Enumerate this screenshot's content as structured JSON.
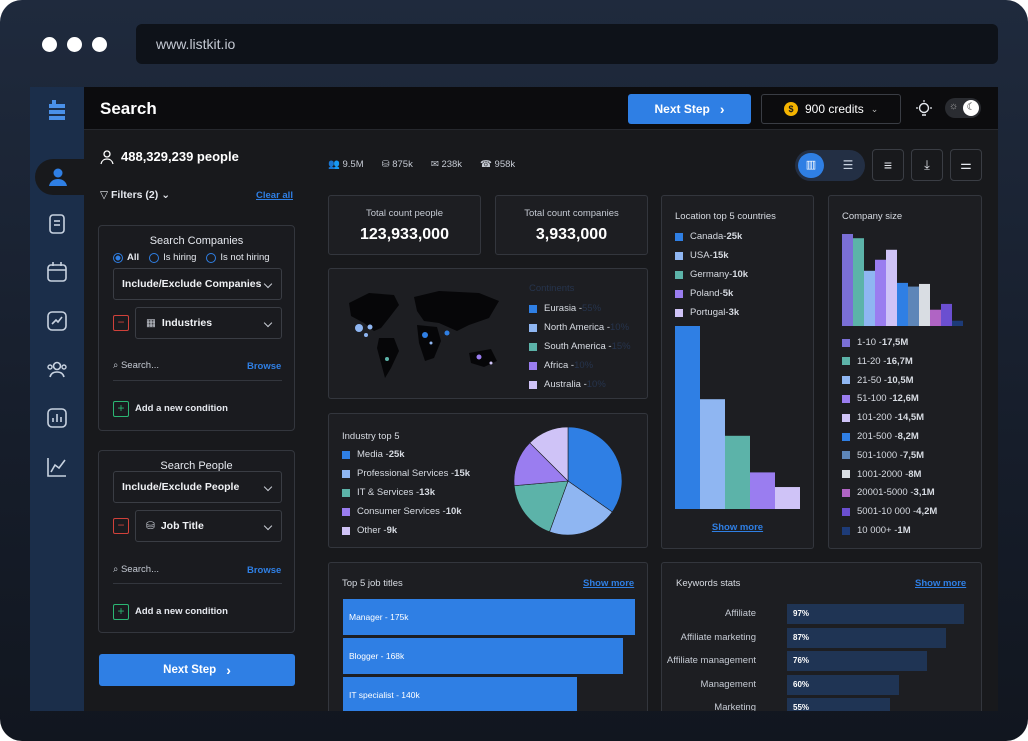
{
  "browser": {
    "url": "www.listkit.io"
  },
  "header": {
    "title": "Search",
    "next_step": "Next Step",
    "credits": "900 credits"
  },
  "people": {
    "count": "488,329,239 people",
    "stats": [
      "9.5M",
      "875k",
      "238k",
      "958k"
    ]
  },
  "filters": {
    "label": "Filters (2)",
    "clear": "Clear all"
  },
  "companies": {
    "title": "Search Companies",
    "radios": [
      "All",
      "Is hiring",
      "Is not hiring"
    ],
    "include": "Include/Exclude Companies",
    "field": "Industries",
    "search_placeholder": "Search...",
    "browse": "Browse",
    "add": "Add a new condition"
  },
  "peoplefilter": {
    "title": "Search People",
    "include": "Include/Exclude People",
    "field": "Job Title",
    "search_placeholder": "Search...",
    "browse": "Browse",
    "add": "Add a new condition"
  },
  "next_step_bottom": "Next Step",
  "totals": {
    "people_label": "Total count people",
    "people_value": "123,933,000",
    "companies_label": "Total count companies",
    "companies_value": "3,933,000"
  },
  "continents": {
    "title": "Continents",
    "items": [
      {
        "name": "Eurasia",
        "pct": "55%",
        "color": "#2f7fe4"
      },
      {
        "name": "North America",
        "pct": "10%",
        "color": "#8fb6f2"
      },
      {
        "name": "South America",
        "pct": "15%",
        "color": "#5cb3a9"
      },
      {
        "name": "Africa",
        "pct": "10%",
        "color": "#9a7df0"
      },
      {
        "name": "Australia",
        "pct": "10%",
        "color": "#cfc3f7"
      }
    ]
  },
  "industry": {
    "title": "Industry top 5",
    "items": [
      {
        "name": "Media",
        "value": "25k",
        "v": 25,
        "color": "#2f7fe4"
      },
      {
        "name": "Professional Services",
        "value": "15k",
        "v": 15,
        "color": "#8fb6f2"
      },
      {
        "name": "IT & Services",
        "value": "13k",
        "v": 13,
        "color": "#5cb3a9"
      },
      {
        "name": "Consumer Services",
        "value": "10k",
        "v": 10,
        "color": "#9a7df0"
      },
      {
        "name": "Other",
        "value": "9k",
        "v": 9,
        "color": "#cfc3f7"
      }
    ]
  },
  "location": {
    "title": "Location top 5 countries",
    "show_more": "Show more",
    "items": [
      {
        "name": "Canada",
        "value": "25k",
        "v": 25,
        "color": "#2f7fe4"
      },
      {
        "name": "USA",
        "value": "15k",
        "v": 15,
        "color": "#8fb6f2"
      },
      {
        "name": "Germany",
        "value": "10k",
        "v": 10,
        "color": "#5cb3a9"
      },
      {
        "name": "Poland",
        "value": "5k",
        "v": 5,
        "color": "#9a7df0"
      },
      {
        "name": "Portugal",
        "value": "3k",
        "v": 3,
        "color": "#cfc3f7"
      }
    ]
  },
  "company_size": {
    "title": "Company size",
    "items": [
      {
        "name": "1-10",
        "value": "17,5M",
        "v": 17.5,
        "color": "#7a6fd6"
      },
      {
        "name": "11-20",
        "value": "16,7M",
        "v": 16.7,
        "color": "#5cb3a9"
      },
      {
        "name": "21-50",
        "value": "10,5M",
        "v": 10.5,
        "color": "#8fb6f2"
      },
      {
        "name": "51-100",
        "value": "12,6M",
        "v": 12.6,
        "color": "#9a7df0"
      },
      {
        "name": "101-200",
        "value": "14,5M",
        "v": 14.5,
        "color": "#cfc3f7"
      },
      {
        "name": "201-500",
        "value": "8,2M",
        "v": 8.2,
        "color": "#2f7fe4"
      },
      {
        "name": "501-1000",
        "value": "7,5M",
        "v": 7.5,
        "color": "#5e86b8"
      },
      {
        "name": "1001-2000",
        "value": "8M",
        "v": 8,
        "color": "#d9dde3"
      },
      {
        "name": "20001-5000",
        "value": "3,1M",
        "v": 3.1,
        "color": "#b064c4"
      },
      {
        "name": "5001-10 000",
        "value": "4,2M",
        "v": 4.2,
        "color": "#6b4fd0"
      },
      {
        "name": "10 000+",
        "value": "1M",
        "v": 1,
        "color": "#1d3b78"
      }
    ]
  },
  "jobs": {
    "title": "Top 5 job titles",
    "show_more": "Show more",
    "items": [
      {
        "name": "Manager",
        "value": "175k",
        "v": 175
      },
      {
        "name": "Blogger",
        "value": "168k",
        "v": 168
      },
      {
        "name": "IT specialist",
        "value": "140k",
        "v": 140
      }
    ]
  },
  "keywords": {
    "title": "Keywords stats",
    "show_more": "Show more",
    "items": [
      {
        "name": "Affiliate",
        "pct": "97%",
        "v": 97
      },
      {
        "name": "Affiliate marketing",
        "pct": "87%",
        "v": 87
      },
      {
        "name": "Affiliate management",
        "pct": "76%",
        "v": 76
      },
      {
        "name": "Management",
        "pct": "60%",
        "v": 60
      },
      {
        "name": "Marketing",
        "pct": "55%",
        "v": 55
      }
    ]
  }
}
